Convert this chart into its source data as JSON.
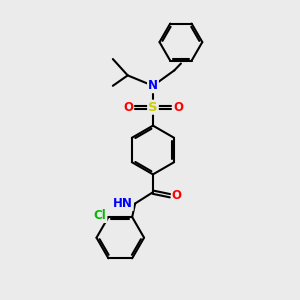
{
  "bg_color": "#ebebeb",
  "bond_color": "#000000",
  "bond_width": 1.5,
  "atom_colors": {
    "N": "#0000ff",
    "O": "#ff0000",
    "S": "#cccc00",
    "Cl": "#00bb00",
    "H": "#000000"
  },
  "font_size": 8.5,
  "fig_width": 3.0,
  "fig_height": 3.0,
  "dpi": 100,
  "xlim": [
    0,
    10
  ],
  "ylim": [
    0,
    10
  ]
}
